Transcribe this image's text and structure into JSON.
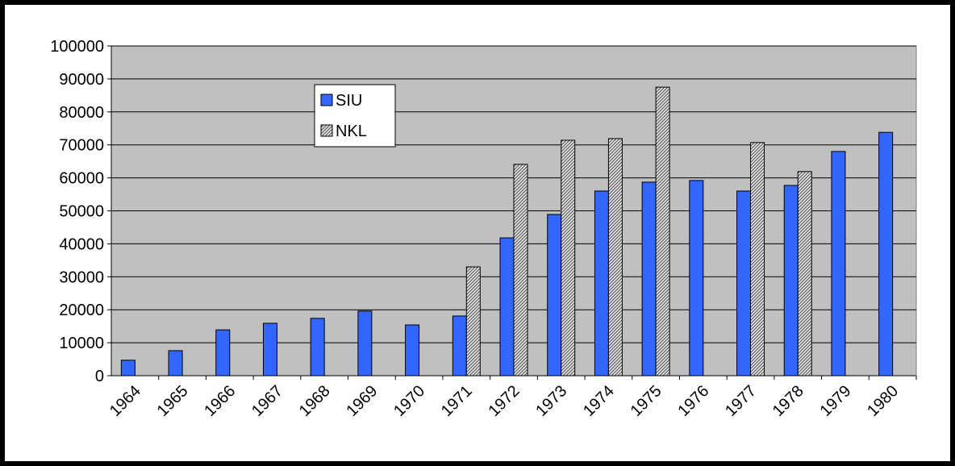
{
  "chart_data": {
    "type": "bar",
    "categories": [
      "1964",
      "1965",
      "1966",
      "1967",
      "1968",
      "1969",
      "1970",
      "1971",
      "1972",
      "1973",
      "1974",
      "1975",
      "1976",
      "1977",
      "1978",
      "1979",
      "1980"
    ],
    "series": [
      {
        "name": "SIU",
        "color": "#3366ff",
        "values": [
          4700,
          7600,
          13900,
          15900,
          17400,
          19600,
          15400,
          18100,
          41800,
          48900,
          56000,
          58700,
          59200,
          56000,
          57700,
          68000,
          73800
        ]
      },
      {
        "name": "NKL",
        "color": "#c0c0c0",
        "values": [
          null,
          null,
          null,
          null,
          null,
          null,
          null,
          33000,
          64100,
          71400,
          71900,
          87500,
          null,
          70700,
          61900,
          null,
          null
        ]
      }
    ],
    "ylim": [
      0,
      100000
    ],
    "yticks": [
      0,
      10000,
      20000,
      30000,
      40000,
      50000,
      60000,
      70000,
      80000,
      90000,
      100000
    ],
    "grid": true
  }
}
